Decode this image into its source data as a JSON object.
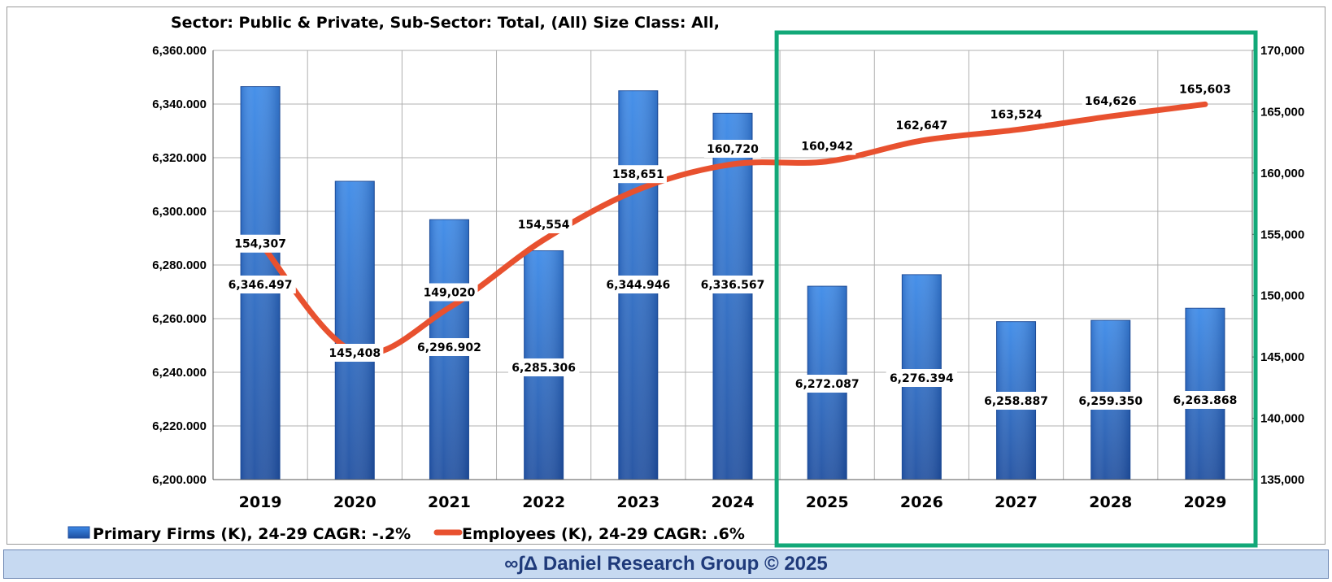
{
  "title": "Sector: Public & Private, Sub-Sector: Total, (All) Size Class: All,",
  "footer": {
    "text": "∞∫Δ Daniel Research Group © 2025"
  },
  "colors": {
    "bar": "#2f6fcf",
    "line": "#e8512f",
    "highlight_box": "#12a878",
    "grid": "#b0b0b0",
    "footer_bg": "#c6d9f1",
    "footer_text": "#1f3a7a"
  },
  "legend": {
    "bar_label": "Primary Firms (K), 24-29 CAGR: -.2%",
    "line_label": "Employees (K), 24-29 CAGR: .6%",
    "placement": "bottom-left"
  },
  "chart_data": {
    "type": "bar",
    "categories": [
      "2019",
      "2020",
      "2021",
      "2022",
      "2023",
      "2024",
      "2025",
      "2026",
      "2027",
      "2028",
      "2029"
    ],
    "series": [
      {
        "name": "Primary Firms (K), 24-29 CAGR: -.2%",
        "type": "bar",
        "axis": "left",
        "values": [
          6346.497,
          6311.2,
          6296.902,
          6285.306,
          6344.946,
          6336.567,
          6272.087,
          6276.394,
          6258.887,
          6259.35,
          6263.868
        ],
        "labels": [
          "6,346.497",
          "",
          "6,296.902",
          "6,285.306",
          "6,344.946",
          "6,336.567",
          "6,272.087",
          "6,276.394",
          "6,258.887",
          "6,259.350",
          "6,263.868"
        ]
      },
      {
        "name": "Employees (K), 24-29 CAGR: .6%",
        "type": "line",
        "axis": "right",
        "values": [
          154307,
          145408,
          149020,
          154554,
          158651,
          160720,
          160942,
          162647,
          163524,
          164626,
          165603
        ],
        "labels": [
          "154,307",
          "145,408",
          "149,020",
          "154,554",
          "158,651",
          "160,720",
          "160,942",
          "162,647",
          "163,524",
          "164,626",
          "165,603"
        ]
      }
    ],
    "y_left": {
      "ylim": [
        6200,
        6360
      ],
      "ticks": [
        "6,200.000",
        "6,220.000",
        "6,240.000",
        "6,260.000",
        "6,280.000",
        "6,300.000",
        "6,320.000",
        "6,340.000",
        "6,360.000"
      ]
    },
    "y_right": {
      "ylim": [
        135000,
        170000
      ],
      "ticks": [
        "135,000",
        "140,000",
        "145,000",
        "150,000",
        "155,000",
        "160,000",
        "165,000",
        "170,000"
      ]
    },
    "grid": true,
    "highlight": {
      "from": "2025",
      "to": "2029"
    }
  }
}
